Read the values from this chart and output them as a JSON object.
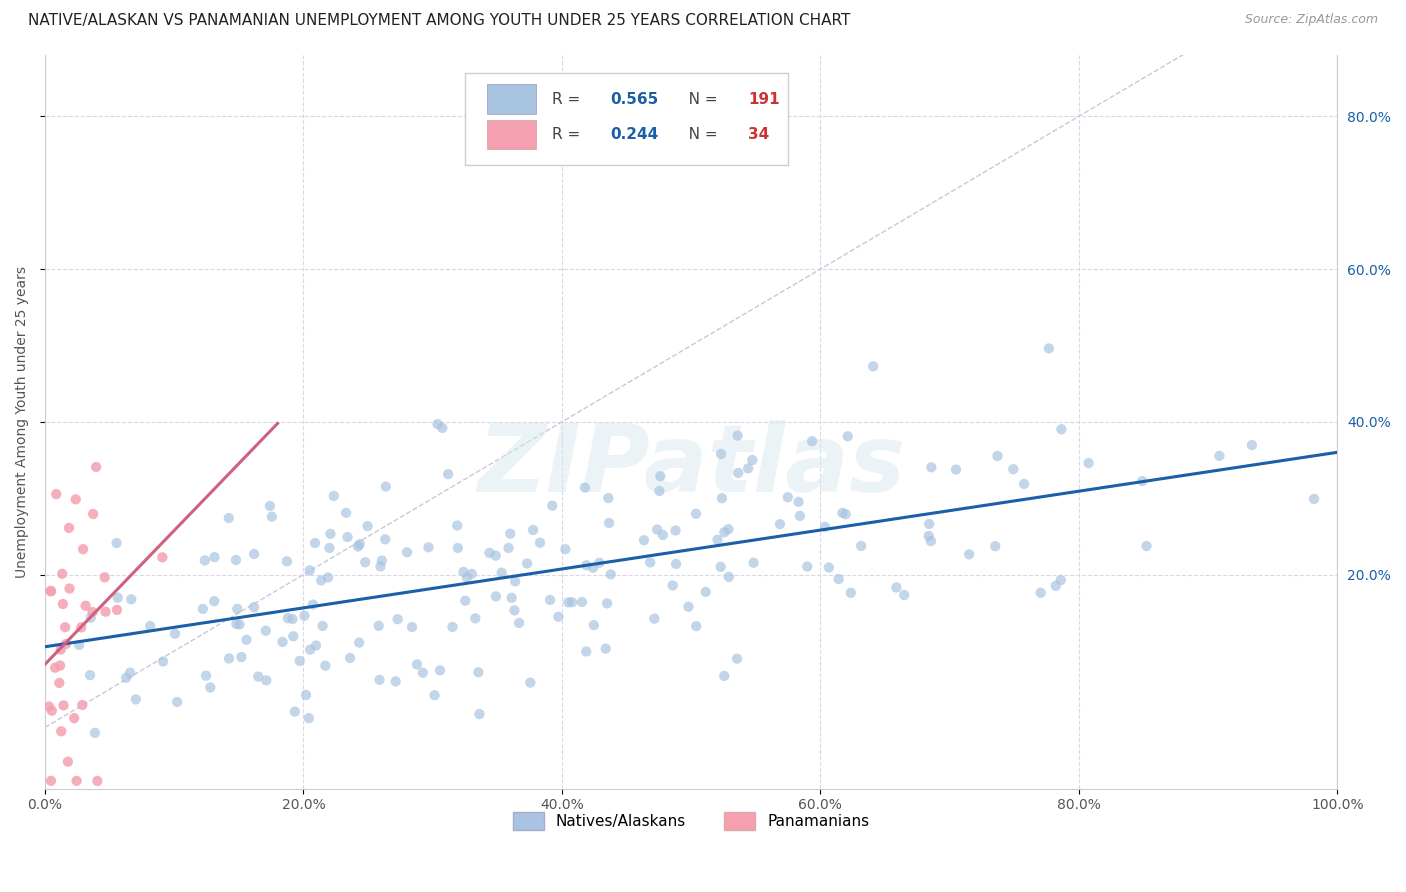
{
  "title": "NATIVE/ALASKAN VS PANAMANIAN UNEMPLOYMENT AMONG YOUTH UNDER 25 YEARS CORRELATION CHART",
  "source": "Source: ZipAtlas.com",
  "ylabel": "Unemployment Among Youth under 25 years",
  "xlim": [
    0,
    1.0
  ],
  "ylim": [
    -0.08,
    0.88
  ],
  "xtick_labels": [
    "0.0%",
    "20.0%",
    "40.0%",
    "60.0%",
    "80.0%",
    "100.0%"
  ],
  "xtick_vals": [
    0.0,
    0.2,
    0.4,
    0.6,
    0.8,
    1.0
  ],
  "ytick_labels": [
    "20.0%",
    "40.0%",
    "60.0%",
    "80.0%"
  ],
  "ytick_vals": [
    0.2,
    0.4,
    0.6,
    0.8
  ],
  "blue_R": "0.565",
  "blue_N": "191",
  "pink_R": "0.244",
  "pink_N": "34",
  "blue_color": "#a8c4e0",
  "pink_color": "#f4a0b0",
  "blue_line_color": "#1a5fa8",
  "pink_line_color": "#d06080",
  "diagonal_color": "#c8c8d8",
  "watermark": "ZIPatlas",
  "legend_label_blue": "Natives/Alaskans",
  "legend_label_pink": "Panamanians",
  "title_fontsize": 11,
  "axis_label_fontsize": 10,
  "tick_fontsize": 10,
  "background_color": "#ffffff",
  "legend_R_N_color": "#1a5fa8",
  "legend_N_val_color": "#cc3333"
}
